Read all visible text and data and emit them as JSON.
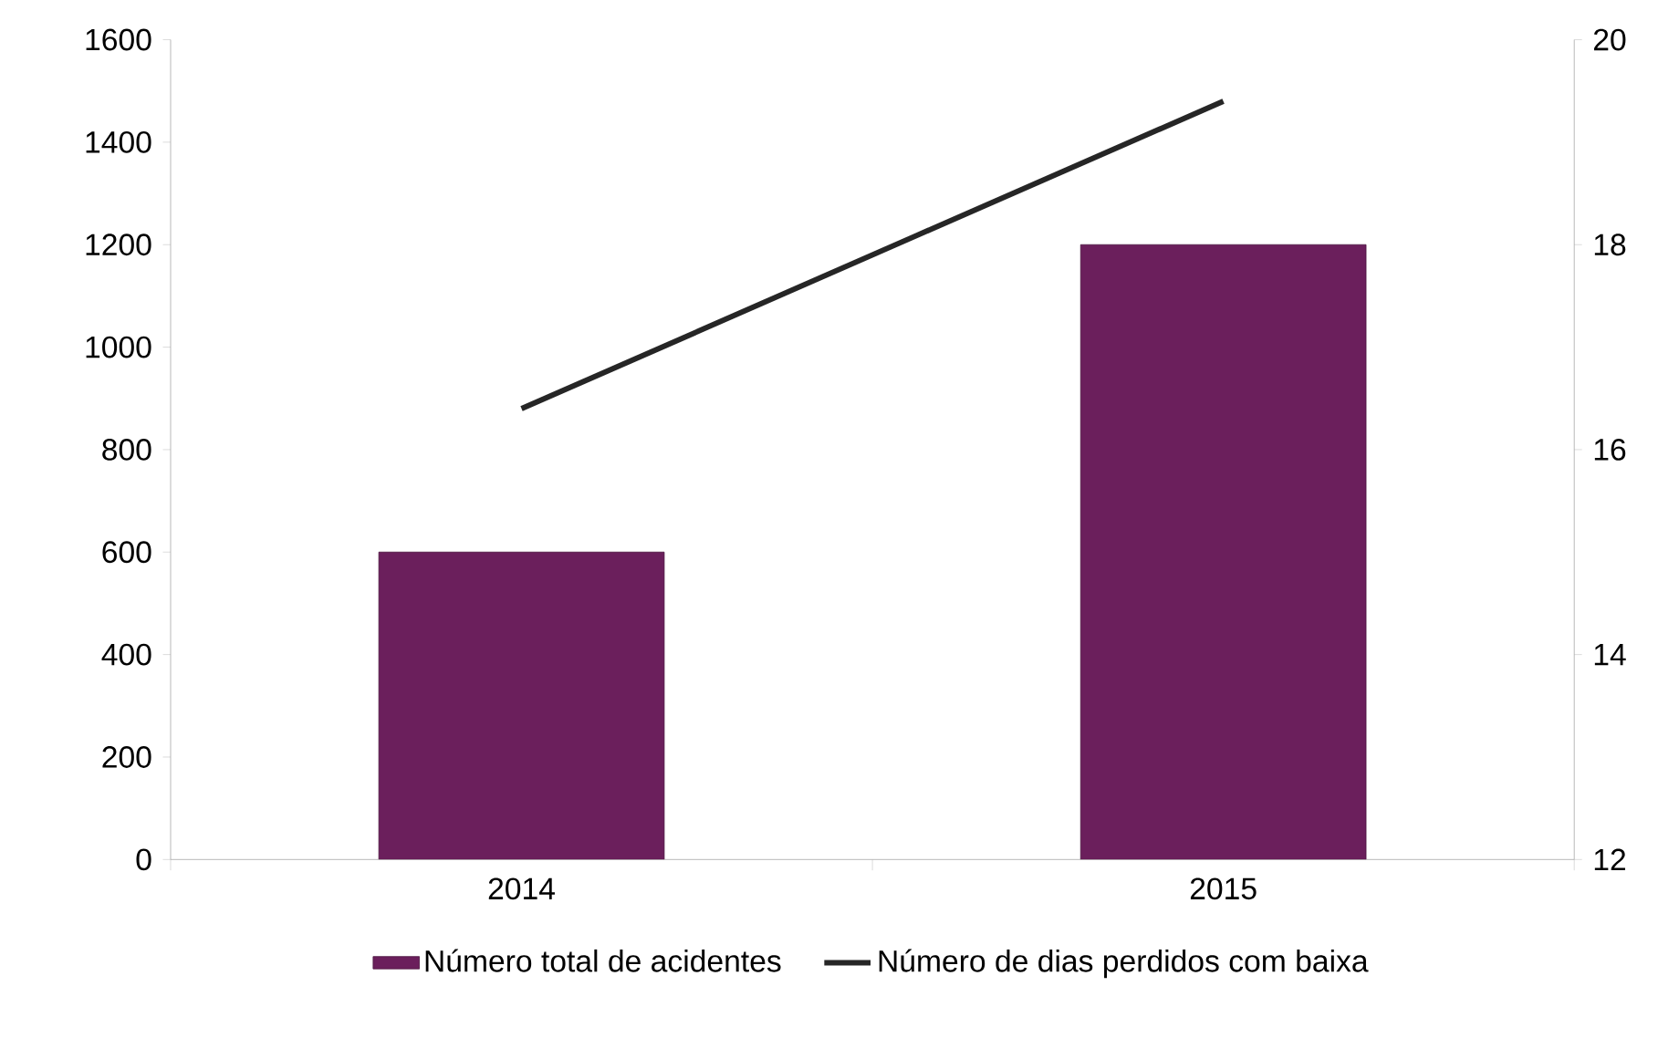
{
  "chart_data": {
    "type": "bar",
    "categories": [
      "2014",
      "2015"
    ],
    "series": [
      {
        "name": "Número total de acidentes",
        "color": "#6b1f5c",
        "values": [
          600,
          1200
        ]
      },
      {
        "name": "Número de dias perdidos com baixa",
        "type": "line",
        "axis": "y2",
        "color": "#262626",
        "values": [
          16.4,
          19.4
        ]
      }
    ],
    "ylim": [
      0,
      1600
    ],
    "yticks": [
      0,
      200,
      400,
      600,
      800,
      1000,
      1200,
      1400,
      1600
    ],
    "y2lim": [
      12,
      20
    ],
    "y2ticks": [
      12,
      14,
      16,
      18,
      20
    ],
    "legend": "bottom"
  }
}
